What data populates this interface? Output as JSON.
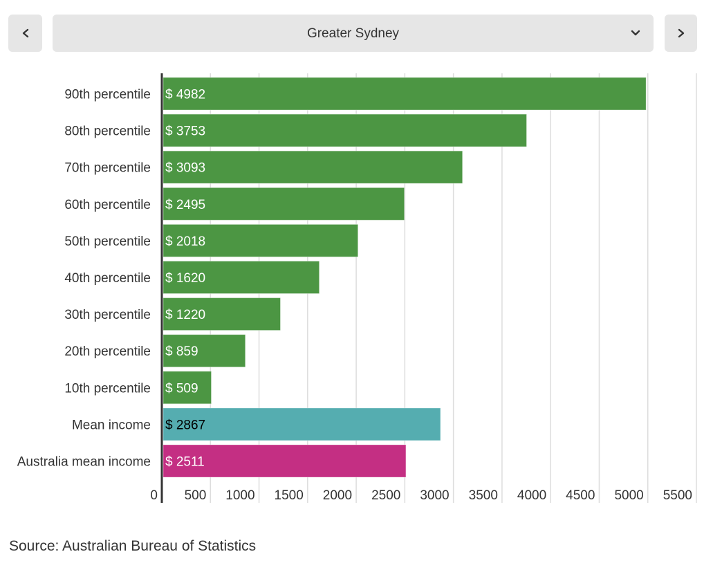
{
  "controls": {
    "prev_icon": "chevron-left-icon",
    "next_icon": "chevron-right-icon",
    "dropdown_icon": "chevron-down-icon",
    "selected_region": "Greater Sydney"
  },
  "chart_data": {
    "type": "bar",
    "orientation": "horizontal",
    "title": "",
    "xlabel": "",
    "ylabel": "",
    "xlim": [
      0,
      5500
    ],
    "xticks": [
      0,
      500,
      1000,
      1500,
      2000,
      2500,
      3000,
      3500,
      4000,
      4500,
      5000,
      5500
    ],
    "grid": true,
    "value_prefix": "$ ",
    "categories": [
      "90th percentile",
      "80th percentile",
      "70th percentile",
      "60th percentile",
      "50th percentile",
      "40th percentile",
      "30th percentile",
      "20th percentile",
      "10th percentile",
      "Mean income",
      "Australia mean income"
    ],
    "values": [
      4982,
      3753,
      3093,
      2495,
      2018,
      1620,
      1220,
      859,
      509,
      2867,
      2511
    ],
    "colors": [
      "#4c9643",
      "#4c9643",
      "#4c9643",
      "#4c9643",
      "#4c9643",
      "#4c9643",
      "#4c9643",
      "#4c9643",
      "#4c9643",
      "#55adb0",
      "#c42f83"
    ],
    "label_colors": [
      "#ffffff",
      "#ffffff",
      "#ffffff",
      "#ffffff",
      "#ffffff",
      "#ffffff",
      "#ffffff",
      "#ffffff",
      "#ffffff",
      "#000000",
      "#ffffff"
    ]
  },
  "source": "Source: Australian Bureau of Statistics"
}
